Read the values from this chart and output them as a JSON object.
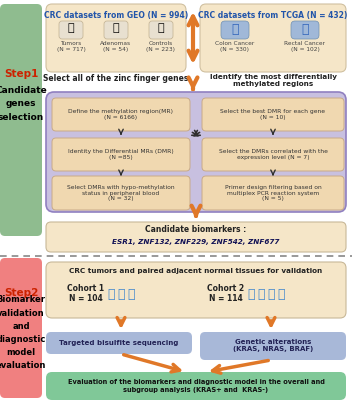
{
  "geo_title": "CRC datasets from GEO (N = 994)",
  "tcga_title": "CRC datasets from TCGA (N = 432)",
  "geo_items": [
    "Tumors\n(N = 717)",
    "Adenomas\n(N = 54)",
    "Controls\n(N = 223)"
  ],
  "tcga_items": [
    "Colon Cancer\n(N = 330)",
    "Rectal Cancer\n(N = 102)"
  ],
  "geo_label": "Select all of the zinc finger genes",
  "tcga_label": "Identify the most differentially\nmethylated regions",
  "step1_boxes_left": [
    "Define the methylation region(MR)\n(N = 6166)",
    "Identity the Differential MRs (DMR)\n(N =85)",
    "Select DMRs with hypo-methylation\nstatus in peripheral blood\n(N = 32)"
  ],
  "step1_boxes_right": [
    "Select the best DMR for each gene\n(N = 10)",
    "Select the DMRs correlated with the\nexpression level (N = 7)",
    "Primer design filtering based on\nmultiplex PCR reaction system\n(N = 5)"
  ],
  "step1_label_line1": "Step1",
  "step1_label_line2": "Candidate\ngenes\nselection",
  "step2_label_line1": "Step2",
  "step2_label_line2": "Biomarker\nvalidation\nand\ndiagnostic\nmodel\nevaluation",
  "validation_title": "CRC tumors and paired adjacent normal tissues for validation",
  "cohort1_label": "Cohort 1\nN = 104",
  "cohort2_label": "Cohort 2\nN = 114",
  "box_tbs": "Targeted bisulfite sequencing",
  "box_ga": "Genetic alterations\n(KRAS, NRAS, BRAF)",
  "eval_text": "Evaluation of the biomarkers and diagnostic model in the overall and\nsubgroup analysis (KRAS+ and  KRAS-)",
  "color_step1_bg": "#8fbc8f",
  "color_step2_bg": "#f08080",
  "color_geo_box": "#f5e6c8",
  "color_step1_main": "#c8c0e0",
  "color_inner_box": "#f0d8b0",
  "color_candidate": "#f5e6c8",
  "color_validation": "#f5e6c8",
  "color_tbs": "#a8b8d8",
  "color_ga": "#a8b8d8",
  "color_eval": "#80c898",
  "color_arrow": "#e07828",
  "color_dark_arrow": "#303030",
  "color_geo_text": "#2255aa",
  "color_step_red": "#cc2200"
}
